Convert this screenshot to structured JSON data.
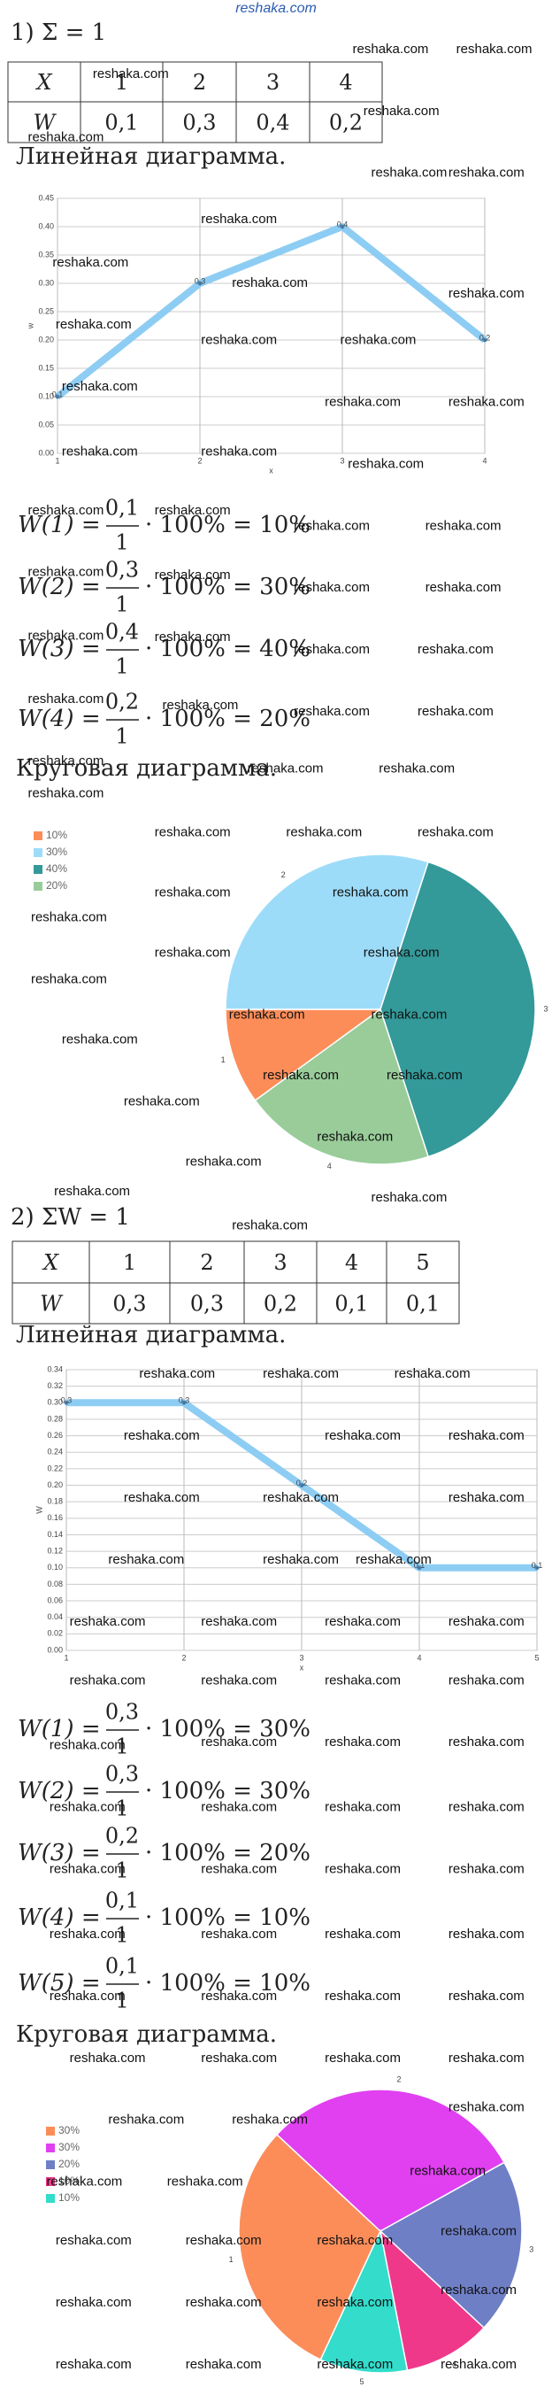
{
  "site": "reshaka.com",
  "watermark": "reshaka.com",
  "parts": [
    {
      "heading": "1) Σ = 1",
      "table": {
        "rows": [
          [
            "X",
            "1",
            "2",
            "3",
            "4"
          ],
          [
            "W",
            "0,1",
            "0,3",
            "0,4",
            "0,2"
          ]
        ]
      },
      "line_title": "Линейная диаграмма.",
      "line_chart": {
        "type": "line",
        "x": [
          1,
          2,
          3,
          4
        ],
        "values": [
          0.1,
          0.3,
          0.4,
          0.2
        ],
        "value_labels": [
          "0,1",
          "0,3",
          "0,4",
          "0,2"
        ],
        "xlabel": "x",
        "ylabel": "w",
        "xlim": [
          1,
          4
        ],
        "xticks": [
          1,
          2,
          3,
          4
        ],
        "ylim": [
          0,
          0.45
        ],
        "yticks": [
          {
            "value": 0,
            "label": "0.00"
          },
          {
            "value": 0.05,
            "label": "0.05"
          },
          {
            "value": 0.1,
            "label": "0.10"
          },
          {
            "value": 0.15,
            "label": "0.15"
          },
          {
            "value": 0.2,
            "label": "0.20"
          },
          {
            "value": 0.25,
            "label": "0.25"
          },
          {
            "value": 0.3,
            "label": "0.30"
          },
          {
            "value": 0.35,
            "label": "0.35"
          },
          {
            "value": 0.4,
            "label": "0.40"
          },
          {
            "value": 0.45,
            "label": "0.45"
          }
        ],
        "color": "#8ecdf3",
        "grid": true
      },
      "formulas": [
        {
          "lhs": "W(1) =",
          "num": "0,1",
          "den": "1",
          "rhs": "· 100% = 10%"
        },
        {
          "lhs": "W(2) =",
          "num": "0,3",
          "den": "1",
          "rhs": "· 100% = 30%"
        },
        {
          "lhs": "W(3) =",
          "num": "0,4",
          "den": "1",
          "rhs": "· 100% = 40%"
        },
        {
          "lhs": "W(4) =",
          "num": "0,2",
          "den": "1",
          "rhs": "· 100% = 20%"
        }
      ],
      "pie_title": "Круговая диаграмма.",
      "pie_chart": {
        "type": "pie",
        "categories": [
          "1",
          "2",
          "3",
          "4"
        ],
        "values": [
          10,
          30,
          40,
          20
        ],
        "value_labels": [
          "10%",
          "30%",
          "40%",
          "20%"
        ],
        "colors": [
          "#fc8d59",
          "#9ddcf9",
          "#339999",
          "#99cc99"
        ]
      }
    },
    {
      "heading": "2) ΣW = 1",
      "table": {
        "rows": [
          [
            "X",
            "1",
            "2",
            "3",
            "4",
            "5"
          ],
          [
            "W",
            "0,3",
            "0,3",
            "0,2",
            "0,1",
            "0,1"
          ]
        ]
      },
      "line_title": "Линейная диаграмма.",
      "line_chart": {
        "type": "line",
        "x": [
          1,
          2,
          3,
          4,
          5
        ],
        "values": [
          0.3,
          0.3,
          0.2,
          0.1,
          0.1
        ],
        "value_labels": [
          "0,3",
          "0,3",
          "0,2",
          "0,1",
          "0,1"
        ],
        "xlabel": "x",
        "ylabel": "W",
        "xlim": [
          1,
          5
        ],
        "xticks": [
          1,
          2,
          3,
          4,
          5
        ],
        "ylim": [
          0,
          0.34
        ],
        "yticks": [
          {
            "value": 0,
            "label": "0.00"
          },
          {
            "value": 0.02,
            "label": "0.02"
          },
          {
            "value": 0.04,
            "label": "0.04"
          },
          {
            "value": 0.06,
            "label": "0.06"
          },
          {
            "value": 0.08,
            "label": "0.08"
          },
          {
            "value": 0.1,
            "label": "0.10"
          },
          {
            "value": 0.12,
            "label": "0.12"
          },
          {
            "value": 0.14,
            "label": "0.14"
          },
          {
            "value": 0.16,
            "label": "0.16"
          },
          {
            "value": 0.18,
            "label": "0.18"
          },
          {
            "value": 0.2,
            "label": "0.20"
          },
          {
            "value": 0.22,
            "label": "0.22"
          },
          {
            "value": 0.24,
            "label": "0.24"
          },
          {
            "value": 0.26,
            "label": "0.26"
          },
          {
            "value": 0.28,
            "label": "0.28"
          },
          {
            "value": 0.3,
            "label": "0.30"
          },
          {
            "value": 0.32,
            "label": "0.32"
          },
          {
            "value": 0.34,
            "label": "0.34"
          }
        ],
        "color": "#8ecdf3",
        "grid": true
      },
      "formulas": [
        {
          "lhs": "W(1) =",
          "num": "0,3",
          "den": "1",
          "rhs": "· 100% = 30%"
        },
        {
          "lhs": "W(2) =",
          "num": "0,3",
          "den": "1",
          "rhs": "· 100% = 30%"
        },
        {
          "lhs": "W(3) =",
          "num": "0,2",
          "den": "1",
          "rhs": "· 100% = 20%"
        },
        {
          "lhs": "W(4) =",
          "num": "0,1",
          "den": "1",
          "rhs": "· 100% = 10%"
        },
        {
          "lhs": "W(5) =",
          "num": "0,1",
          "den": "1",
          "rhs": "· 100% = 10%"
        }
      ],
      "pie_title": "Круговая диаграмма.",
      "pie_chart": {
        "type": "pie",
        "categories": [
          "1",
          "2",
          "3",
          "4",
          "5"
        ],
        "values": [
          30,
          30,
          20,
          10,
          10
        ],
        "value_labels": [
          "30%",
          "30%",
          "20%",
          "10%",
          "10%"
        ],
        "colors": [
          "#fc8d59",
          "#e040f0",
          "#6f7fc6",
          "#f0388a",
          "#33dccb"
        ]
      }
    }
  ]
}
